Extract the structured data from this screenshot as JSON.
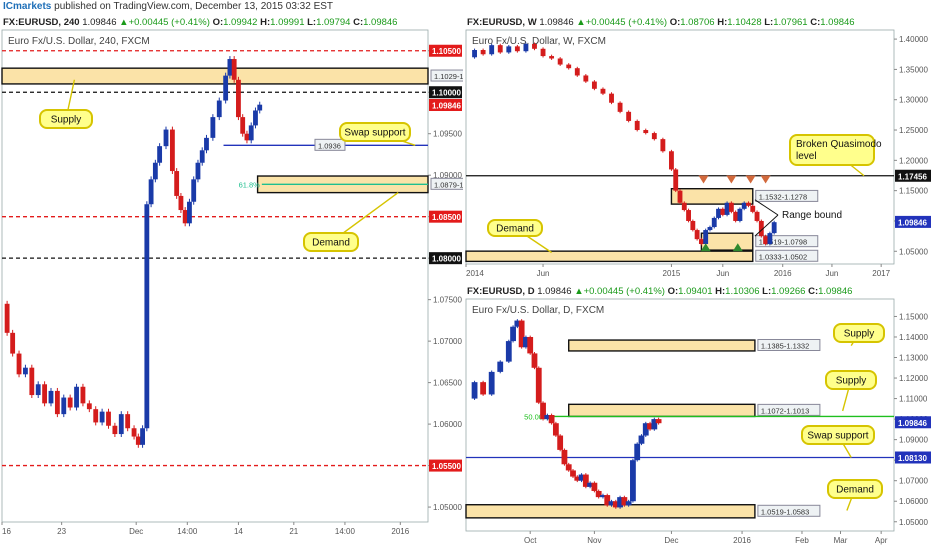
{
  "header": {
    "brand": "ICmarkets",
    "text": "published on TradingView.com, December 13, 2015 03:32 EST"
  },
  "chart_data": [
    {
      "id": "h4",
      "type": "candlestick",
      "topline": {
        "symbol": "FX:EURUSD, 240",
        "price": "1.09846",
        "change": "+0.00445 (+0.41%)",
        "O": "1.09942",
        "H": "1.09991",
        "L": "1.09794",
        "C": "1.09846"
      },
      "title": "Euro Fx/U.S. Dollar, 240, FXCM",
      "ylim": [
        1.0482,
        1.1075
      ],
      "yticks": [
        "1.05000",
        "1.05500",
        "1.06000",
        "1.06500",
        "1.07000",
        "1.07500",
        "1.08000",
        "1.08500",
        "1.09000",
        "1.09500",
        "1.10000",
        "1.10500"
      ],
      "xticks": [
        {
          "label": "16",
          "pos": 0.0
        },
        {
          "label": "23",
          "pos": 0.14
        },
        {
          "label": "Dec",
          "pos": 0.315
        },
        {
          "label": "14:00",
          "pos": 0.435
        },
        {
          "label": "14",
          "pos": 0.555
        },
        {
          "label": "21",
          "pos": 0.685
        },
        {
          "label": "14:00",
          "pos": 0.805
        },
        {
          "label": "2016",
          "pos": 0.935
        }
      ],
      "price_tags": [
        {
          "text": "1.10500",
          "value": 1.105,
          "color": "#e31b1b"
        },
        {
          "text": "1.10000",
          "value": 1.1,
          "color": "#111111"
        },
        {
          "text": "1.09846",
          "value": 1.09846,
          "color": "#e31b1b"
        },
        {
          "text": "1.08500",
          "value": 1.085,
          "color": "#e31b1b"
        },
        {
          "text": "1.08000",
          "value": 1.08,
          "color": "#111111"
        },
        {
          "text": "1.05500",
          "value": 1.055,
          "color": "#e31b1b"
        }
      ],
      "hlines": [
        {
          "value": 1.105,
          "color": "#e31b1b",
          "dash": true
        },
        {
          "value": 1.1,
          "color": "#111111",
          "dash": true
        },
        {
          "value": 1.085,
          "color": "#e31b1b",
          "dash": true
        },
        {
          "value": 1.08,
          "color": "#111111",
          "dash": true
        },
        {
          "value": 1.055,
          "color": "#e31b1b",
          "dash": true
        }
      ],
      "zones": [
        {
          "top": 1.1029,
          "bottom": 1.101,
          "x0": 0.0,
          "label": "1.1029-1.1010"
        },
        {
          "top": 1.0899,
          "bottom": 1.0879,
          "x0": 0.6,
          "label": "1.0879-1.0899"
        }
      ],
      "segments": [
        {
          "value": 1.0936,
          "x0": 0.52,
          "x1": 1.0,
          "color": "#2233bb",
          "label": "1.0936"
        },
        {
          "value": 1.0889,
          "x0": 0.61,
          "x1": 1.0,
          "color": "#1fbf8f",
          "label": "61.8%"
        }
      ],
      "callouts": [
        {
          "text": "Supply",
          "ax": 0.17,
          "ay": 1.1015
        },
        {
          "text": "Swap support",
          "ax": 0.97,
          "ay": 1.0936
        },
        {
          "text": "Demand",
          "ax": 0.93,
          "ay": 1.0879
        }
      ],
      "path": [
        [
          0,
          1.0745
        ],
        [
          0.012,
          1.071
        ],
        [
          0.025,
          1.0685
        ],
        [
          0.04,
          1.066
        ],
        [
          0.055,
          1.0668
        ],
        [
          0.07,
          1.0635
        ],
        [
          0.085,
          1.0648
        ],
        [
          0.1,
          1.0625
        ],
        [
          0.115,
          1.064
        ],
        [
          0.13,
          1.0612
        ],
        [
          0.145,
          1.0632
        ],
        [
          0.16,
          1.062
        ],
        [
          0.175,
          1.0645
        ],
        [
          0.19,
          1.0625
        ],
        [
          0.205,
          1.0618
        ],
        [
          0.22,
          1.0602
        ],
        [
          0.235,
          1.0615
        ],
        [
          0.25,
          1.0598
        ],
        [
          0.265,
          1.0588
        ],
        [
          0.28,
          1.0612
        ],
        [
          0.295,
          1.0595
        ],
        [
          0.31,
          1.0585
        ],
        [
          0.32,
          1.0575
        ],
        [
          0.33,
          1.0595
        ],
        [
          0.34,
          1.0865
        ],
        [
          0.35,
          1.0895
        ],
        [
          0.36,
          1.0915
        ],
        [
          0.37,
          1.0935
        ],
        [
          0.385,
          1.0955
        ],
        [
          0.4,
          1.0905
        ],
        [
          0.41,
          1.0875
        ],
        [
          0.42,
          1.0858
        ],
        [
          0.43,
          1.0842
        ],
        [
          0.44,
          1.0868
        ],
        [
          0.45,
          1.0895
        ],
        [
          0.46,
          1.0915
        ],
        [
          0.47,
          1.093
        ],
        [
          0.48,
          1.0945
        ],
        [
          0.495,
          1.097
        ],
        [
          0.51,
          1.099
        ],
        [
          0.525,
          1.102
        ],
        [
          0.535,
          1.104
        ],
        [
          0.545,
          1.1015
        ],
        [
          0.555,
          1.097
        ],
        [
          0.565,
          1.095
        ],
        [
          0.575,
          1.0942
        ],
        [
          0.585,
          1.096
        ],
        [
          0.595,
          1.0978
        ],
        [
          0.605,
          1.0985
        ]
      ]
    },
    {
      "id": "weekly",
      "type": "candlestick",
      "topline": {
        "symbol": "FX:EURUSD, W",
        "price": "1.09846",
        "change": "+0.00445 (+0.41%)",
        "O": "1.08706",
        "H": "1.10428",
        "L": "1.07961",
        "C": "1.09846"
      },
      "title": "Euro Fx/U.S. Dollar, W, FXCM",
      "ylim": [
        1.029,
        1.415
      ],
      "yticks": [
        "1.05000",
        "1.10000",
        "1.15000",
        "1.20000",
        "1.25000",
        "1.30000",
        "1.35000",
        "1.40000"
      ],
      "xticks": [
        {
          "label": "2014",
          "pos": 0.0
        },
        {
          "label": "Jun",
          "pos": 0.18
        },
        {
          "label": "2015",
          "pos": 0.48
        },
        {
          "label": "Jun",
          "pos": 0.6
        },
        {
          "label": "2016",
          "pos": 0.74
        },
        {
          "label": "Jun",
          "pos": 0.855
        },
        {
          "label": "2017",
          "pos": 0.97
        }
      ],
      "price_tags": [
        {
          "text": "1.17456",
          "value": 1.17456,
          "color": "#111111"
        },
        {
          "text": "1.09846",
          "value": 1.09846,
          "color": "#2233bb"
        }
      ],
      "hlines": [
        {
          "value": 1.17456,
          "color": "#111111",
          "dash": false
        }
      ],
      "zones": [
        {
          "top": 1.1532,
          "bottom": 1.1278,
          "x0": 0.48,
          "x1": 0.67,
          "label": "1.1532-1.1278"
        },
        {
          "top": 1.0798,
          "bottom": 1.0519,
          "x0": 0.55,
          "x1": 0.67,
          "label": "1.0519-1.0798"
        },
        {
          "top": 1.0502,
          "bottom": 1.0333,
          "x0": 0.0,
          "x1": 0.67,
          "label": "1.0333-1.0502"
        }
      ],
      "segments": [],
      "arrows_down": [
        0.555,
        0.62,
        0.665,
        0.7
      ],
      "arrows_up": [
        0.56,
        0.635
      ],
      "callouts": [
        {
          "text": "Broken Quasimodo",
          "text2": "level",
          "ax": 0.93,
          "ay": 1.17456
        },
        {
          "text": "Range bound",
          "ax": 0.73,
          "ay": 1.12
        },
        {
          "text": "Demand",
          "ax": 0.2,
          "ay": 1.048
        }
      ],
      "path": [
        [
          0.0,
          1.37
        ],
        [
          0.02,
          1.382
        ],
        [
          0.04,
          1.375
        ],
        [
          0.06,
          1.39
        ],
        [
          0.08,
          1.378
        ],
        [
          0.1,
          1.388
        ],
        [
          0.12,
          1.38
        ],
        [
          0.14,
          1.392
        ],
        [
          0.16,
          1.384
        ],
        [
          0.18,
          1.372
        ],
        [
          0.2,
          1.368
        ],
        [
          0.22,
          1.358
        ],
        [
          0.24,
          1.352
        ],
        [
          0.26,
          1.34
        ],
        [
          0.28,
          1.33
        ],
        [
          0.3,
          1.318
        ],
        [
          0.32,
          1.31
        ],
        [
          0.34,
          1.295
        ],
        [
          0.36,
          1.28
        ],
        [
          0.38,
          1.265
        ],
        [
          0.4,
          1.25
        ],
        [
          0.42,
          1.245
        ],
        [
          0.44,
          1.235
        ],
        [
          0.46,
          1.215
        ],
        [
          0.48,
          1.185
        ],
        [
          0.49,
          1.15
        ],
        [
          0.5,
          1.13
        ],
        [
          0.51,
          1.118
        ],
        [
          0.52,
          1.1
        ],
        [
          0.53,
          1.085
        ],
        [
          0.54,
          1.07
        ],
        [
          0.55,
          1.062
        ],
        [
          0.56,
          1.085
        ],
        [
          0.57,
          1.09
        ],
        [
          0.58,
          1.105
        ],
        [
          0.59,
          1.12
        ],
        [
          0.6,
          1.11
        ],
        [
          0.61,
          1.13
        ],
        [
          0.62,
          1.115
        ],
        [
          0.63,
          1.1
        ],
        [
          0.64,
          1.12
        ],
        [
          0.65,
          1.13
        ],
        [
          0.66,
          1.125
        ],
        [
          0.67,
          1.115
        ],
        [
          0.68,
          1.1
        ],
        [
          0.69,
          1.075
        ],
        [
          0.7,
          1.062
        ],
        [
          0.71,
          1.08
        ],
        [
          0.72,
          1.098
        ]
      ]
    },
    {
      "id": "daily",
      "type": "candlestick",
      "topline": {
        "symbol": "FX:EURUSD, D",
        "price": "1.09846",
        "change": "+0.00445 (+0.41%)",
        "O": "1.09401",
        "H": "1.10306",
        "L": "1.09266",
        "C": "1.09846"
      },
      "title": "Euro Fx/U.S. Dollar, D, FXCM",
      "ylim": [
        1.0455,
        1.1585
      ],
      "yticks": [
        "1.05000",
        "1.06000",
        "1.07000",
        "1.08000",
        "1.09000",
        "1.10000",
        "1.11000",
        "1.12000",
        "1.13000",
        "1.14000",
        "1.15000"
      ],
      "xticks": [
        {
          "label": "Oct",
          "pos": 0.15
        },
        {
          "label": "Nov",
          "pos": 0.3
        },
        {
          "label": "Dec",
          "pos": 0.48
        },
        {
          "label": "2016",
          "pos": 0.645
        },
        {
          "label": "Feb",
          "pos": 0.785
        },
        {
          "label": "Mar",
          "pos": 0.875
        },
        {
          "label": "Apr",
          "pos": 0.97
        }
      ],
      "price_tags": [
        {
          "text": "1.09846",
          "value": 1.09846,
          "color": "#2233bb"
        },
        {
          "text": "1.08130",
          "value": 1.0813,
          "color": "#2233bb"
        }
      ],
      "hlines": [
        {
          "value": 1.0813,
          "color": "#2233bb",
          "dash": false
        }
      ],
      "zones": [
        {
          "top": 1.1385,
          "bottom": 1.1332,
          "x0": 0.24,
          "x1": 0.675,
          "label": "1.1385-1.1332"
        },
        {
          "top": 1.1072,
          "bottom": 1.1013,
          "x0": 0.24,
          "x1": 0.675,
          "label": "1.1072-1.1013"
        },
        {
          "top": 1.0583,
          "bottom": 1.0519,
          "x0": 0.0,
          "x1": 0.675,
          "label": "1.0519-1.0583"
        }
      ],
      "segments": [
        {
          "value": 1.1013,
          "x0": 0.2,
          "x1": 1.0,
          "color": "#1fbf1f",
          "label": "50.00%"
        }
      ],
      "callouts": [
        {
          "text": "Supply",
          "ax": 0.9,
          "ay": 1.1358
        },
        {
          "text": "Supply",
          "ax": 0.88,
          "ay": 1.104
        },
        {
          "text": "Swap support",
          "ax": 0.9,
          "ay": 1.0813
        },
        {
          "text": "Demand",
          "ax": 0.89,
          "ay": 1.0555
        }
      ],
      "path": [
        [
          0.0,
          1.11
        ],
        [
          0.02,
          1.118
        ],
        [
          0.04,
          1.112
        ],
        [
          0.06,
          1.123
        ],
        [
          0.08,
          1.128
        ],
        [
          0.1,
          1.138
        ],
        [
          0.11,
          1.145
        ],
        [
          0.12,
          1.148
        ],
        [
          0.13,
          1.135
        ],
        [
          0.14,
          1.14
        ],
        [
          0.15,
          1.132
        ],
        [
          0.16,
          1.125
        ],
        [
          0.17,
          1.108
        ],
        [
          0.18,
          1.1
        ],
        [
          0.19,
          1.102
        ],
        [
          0.2,
          1.098
        ],
        [
          0.21,
          1.092
        ],
        [
          0.22,
          1.085
        ],
        [
          0.23,
          1.078
        ],
        [
          0.24,
          1.075
        ],
        [
          0.25,
          1.072
        ],
        [
          0.26,
          1.07
        ],
        [
          0.27,
          1.073
        ],
        [
          0.28,
          1.067
        ],
        [
          0.29,
          1.069
        ],
        [
          0.3,
          1.065
        ],
        [
          0.31,
          1.062
        ],
        [
          0.32,
          1.063
        ],
        [
          0.33,
          1.058
        ],
        [
          0.34,
          1.06
        ],
        [
          0.35,
          1.057
        ],
        [
          0.36,
          1.062
        ],
        [
          0.37,
          1.058
        ],
        [
          0.38,
          1.06
        ],
        [
          0.39,
          1.08
        ],
        [
          0.4,
          1.088
        ],
        [
          0.41,
          1.092
        ],
        [
          0.42,
          1.098
        ],
        [
          0.43,
          1.095
        ],
        [
          0.44,
          1.1
        ],
        [
          0.45,
          1.098
        ]
      ]
    }
  ]
}
